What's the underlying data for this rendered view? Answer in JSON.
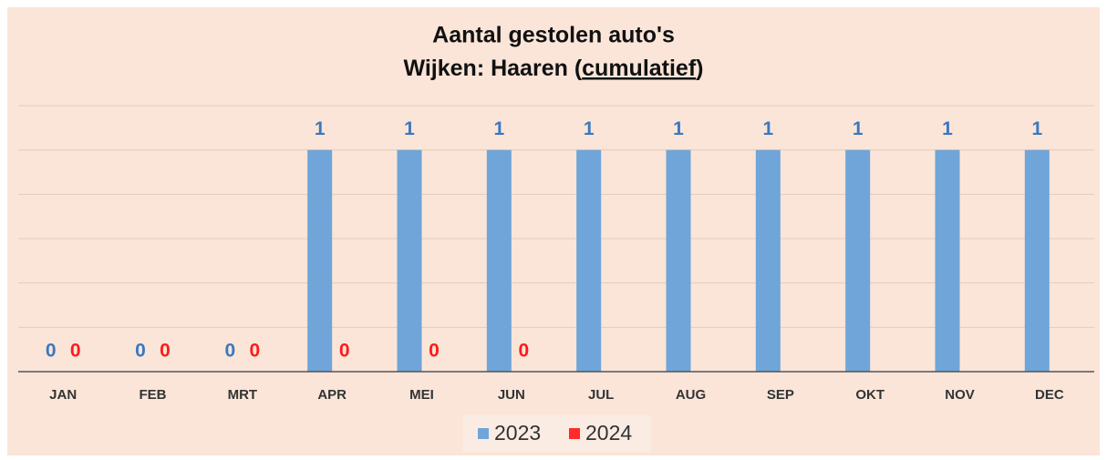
{
  "chart_data": {
    "type": "bar",
    "title": [
      "Aantal gestolen auto's",
      "Wijken: Haaren (cumulatief)"
    ],
    "categories": [
      "JAN",
      "FEB",
      "MRT",
      "APR",
      "MEI",
      "JUN",
      "JUL",
      "AUG",
      "SEP",
      "OKT",
      "NOV",
      "DEC"
    ],
    "series": [
      {
        "name": "2023",
        "color": "#6fa5d8",
        "label_color": "#3a78c0",
        "values": [
          0,
          0,
          0,
          1,
          1,
          1,
          1,
          1,
          1,
          1,
          1,
          1
        ]
      },
      {
        "name": "2024",
        "color": "#ff2a2a",
        "label_color": "#ff1a1a",
        "values": [
          0,
          0,
          0,
          0,
          0,
          0,
          null,
          null,
          null,
          null,
          null,
          null
        ]
      }
    ],
    "ylim": [
      0,
      1.2
    ],
    "yticks": [
      0,
      0.2,
      0.4,
      0.6,
      0.8,
      1,
      1.2
    ],
    "grid": true,
    "legend": "bottom"
  }
}
